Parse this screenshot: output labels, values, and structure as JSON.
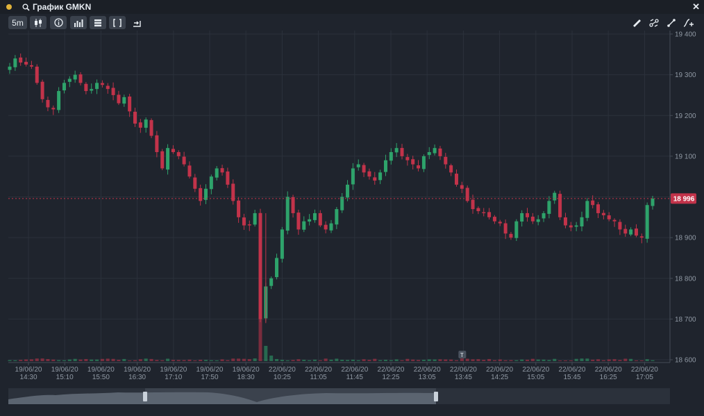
{
  "window": {
    "title": "График GMKN",
    "close_label": "✕"
  },
  "toolbar": {
    "interval_label": "5m",
    "buttons": [
      "candles-icon",
      "info-icon",
      "volume-icon",
      "layers-icon",
      "brackets-icon",
      "export-icon"
    ],
    "right_tools": [
      "ruler-icon",
      "nodes-icon",
      "line-icon",
      "add-study-icon"
    ]
  },
  "price_axis": {
    "labels": [
      "19 400",
      "19 300",
      "19 200",
      "19 100",
      "19 000",
      "18 900",
      "18 800",
      "18 700",
      "18 600"
    ],
    "current_price_label": "18 996"
  },
  "colors": {
    "up": "#2ea36b",
    "down": "#c2334a",
    "background": "#1f242d",
    "grid": "#2b313b",
    "price_line": "#c2334a"
  },
  "chart_data": {
    "type": "candlestick",
    "instrument": "GMKN",
    "interval": "5m",
    "ylim": [
      18600,
      19400
    ],
    "last_price": 18996,
    "x_tick_labels": [
      {
        "date": "19/06/20",
        "time": "14:30"
      },
      {
        "date": "19/06/20",
        "time": "15:10"
      },
      {
        "date": "19/06/20",
        "time": "15:50"
      },
      {
        "date": "19/06/20",
        "time": "16:30"
      },
      {
        "date": "19/06/20",
        "time": "17:10"
      },
      {
        "date": "19/06/20",
        "time": "17:50"
      },
      {
        "date": "19/06/20",
        "time": "18:30"
      },
      {
        "date": "22/06/20",
        "time": "10:25"
      },
      {
        "date": "22/06/20",
        "time": "11:05"
      },
      {
        "date": "22/06/20",
        "time": "11:45"
      },
      {
        "date": "22/06/20",
        "time": "12:25"
      },
      {
        "date": "22/06/20",
        "time": "13:05"
      },
      {
        "date": "22/06/20",
        "time": "13:45"
      },
      {
        "date": "22/06/20",
        "time": "14:25"
      },
      {
        "date": "22/06/20",
        "time": "15:05"
      },
      {
        "date": "22/06/20",
        "time": "15:45"
      },
      {
        "date": "22/06/20",
        "time": "16:25"
      },
      {
        "date": "22/06/20",
        "time": "17:05"
      }
    ],
    "closes": [
      19320,
      19340,
      19330,
      19325,
      19320,
      19280,
      19240,
      19220,
      19215,
      19260,
      19280,
      19290,
      19300,
      19280,
      19260,
      19265,
      19280,
      19275,
      19265,
      19250,
      19230,
      19245,
      19210,
      19180,
      19170,
      19190,
      19150,
      19110,
      19070,
      19120,
      19110,
      19100,
      19080,
      19050,
      19020,
      18990,
      19020,
      19050,
      19070,
      19060,
      19030,
      18990,
      18950,
      18930,
      18930,
      18960,
      18700,
      18780,
      18800,
      18850,
      18920,
      19000,
      18960,
      18920,
      18940,
      18945,
      18960,
      18930,
      18920,
      18935,
      18970,
      19000,
      19030,
      19070,
      19080,
      19060,
      19050,
      19040,
      19060,
      19090,
      19110,
      19120,
      19100,
      19090,
      19080,
      19070,
      19100,
      19110,
      19120,
      19100,
      19080,
      19060,
      19030,
      19020,
      18990,
      18970,
      18965,
      18960,
      18950,
      18940,
      18935,
      18910,
      18900,
      18940,
      18960,
      18950,
      18940,
      18945,
      18960,
      18990,
      19010,
      18950,
      18930,
      18925,
      18930,
      18950,
      18990,
      18980,
      18960,
      18955,
      18945,
      18940,
      18920,
      18910,
      18920,
      18905,
      18900,
      18980,
      18996
    ],
    "volume_spike_index": 46,
    "markers": [
      {
        "label": "T",
        "index": 83
      }
    ]
  }
}
